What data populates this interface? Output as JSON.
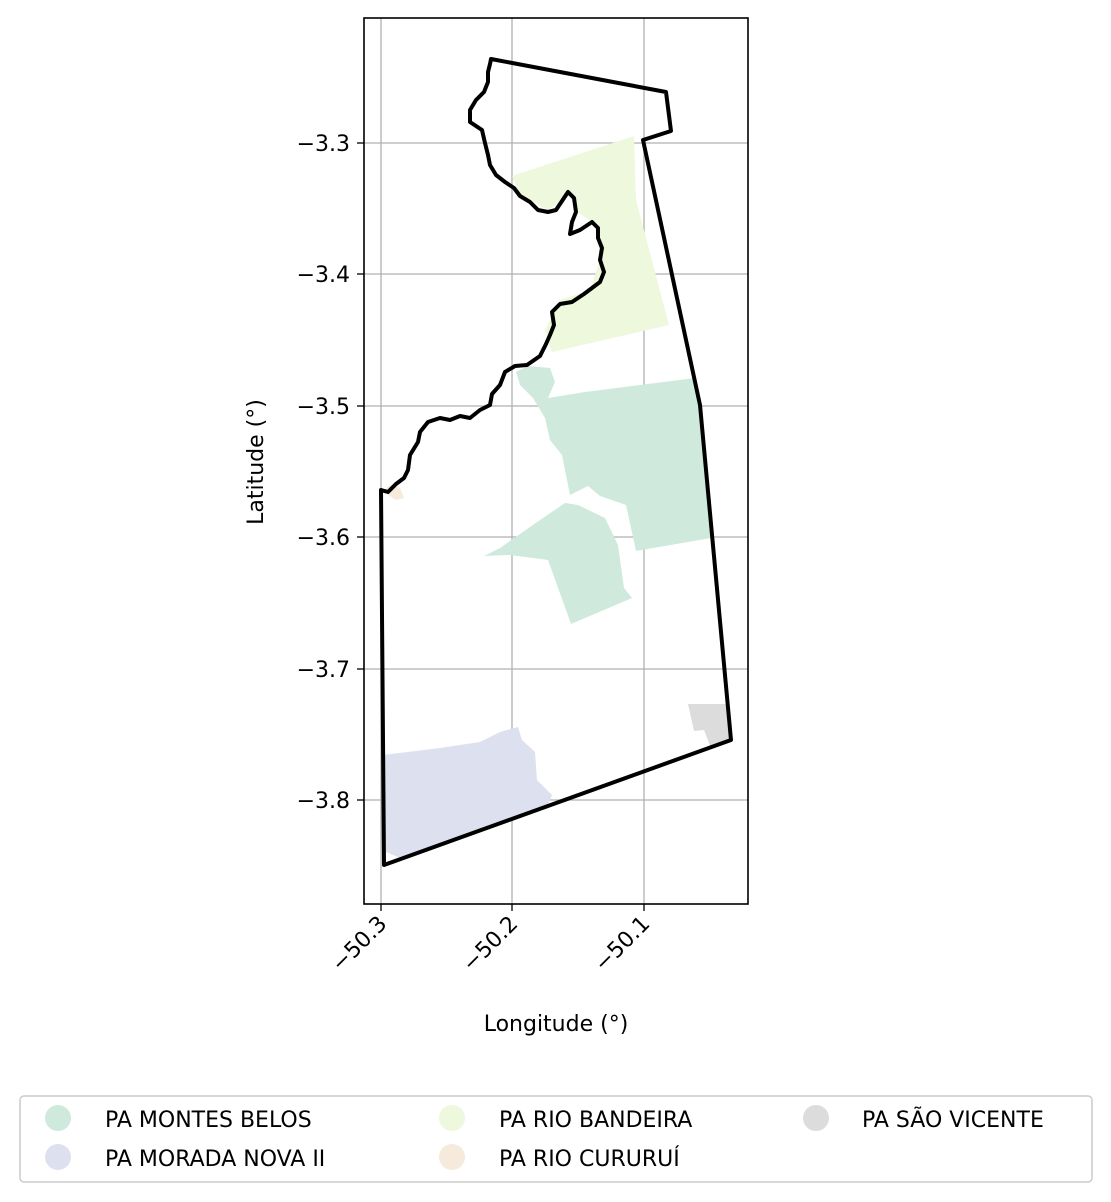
{
  "map": {
    "x_axis_label": "Longitude (°)",
    "y_axis_label": "Latitude (°)",
    "x_ticks": [
      "−50.3",
      "−50.2",
      "−50.1"
    ],
    "y_ticks": [
      "−3.3",
      "−3.4",
      "−3.5",
      "−3.6",
      "−3.7",
      "−3.8"
    ],
    "grid": true,
    "boundary_color": "#000000"
  },
  "legend": {
    "placement": "bottom",
    "items": [
      {
        "label": "PA MONTES BELOS",
        "color": "#cfeadd"
      },
      {
        "label": "PA MORADA NOVA II",
        "color": "#dde1ef"
      },
      {
        "label": "PA RIO BANDEIRA",
        "color": "#eef8dc"
      },
      {
        "label": "PA RIO CURURUÍ",
        "color": "#f5eadb"
      },
      {
        "label": "PA SÃO VICENTE",
        "color": "#dcdcdc"
      }
    ]
  }
}
